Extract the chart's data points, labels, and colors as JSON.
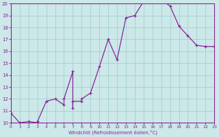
{
  "xlabel": "Windchill (Refroidissement éolien,°C)",
  "xlim": [
    0,
    23
  ],
  "ylim": [
    10,
    20
  ],
  "yticks": [
    10,
    11,
    12,
    13,
    14,
    15,
    16,
    17,
    18,
    19,
    20
  ],
  "xticks": [
    0,
    1,
    2,
    3,
    4,
    5,
    6,
    7,
    8,
    9,
    10,
    11,
    12,
    13,
    14,
    15,
    16,
    17,
    18,
    19,
    20,
    21,
    22,
    23
  ],
  "bg_color": "#cce8e8",
  "line_color": "#882299",
  "figsize": [
    3.2,
    2.0
  ],
  "dpi": 100,
  "series_x": [
    0,
    1,
    2,
    3,
    3,
    4,
    5,
    6,
    6,
    7,
    7,
    7,
    8,
    8,
    9,
    10,
    11,
    12,
    13,
    14,
    15,
    15,
    16,
    17,
    18,
    19,
    20,
    21,
    22,
    23
  ],
  "series_y": [
    10.8,
    10.0,
    10.1,
    10.0,
    10.1,
    11.8,
    12.0,
    11.5,
    12.0,
    14.3,
    11.2,
    11.8,
    11.8,
    12.0,
    12.5,
    14.7,
    17.0,
    15.3,
    18.8,
    19.0,
    20.2,
    20.3,
    20.3,
    20.3,
    19.8,
    18.1,
    17.3,
    16.5,
    16.4,
    16.4
  ],
  "has_markers": true
}
